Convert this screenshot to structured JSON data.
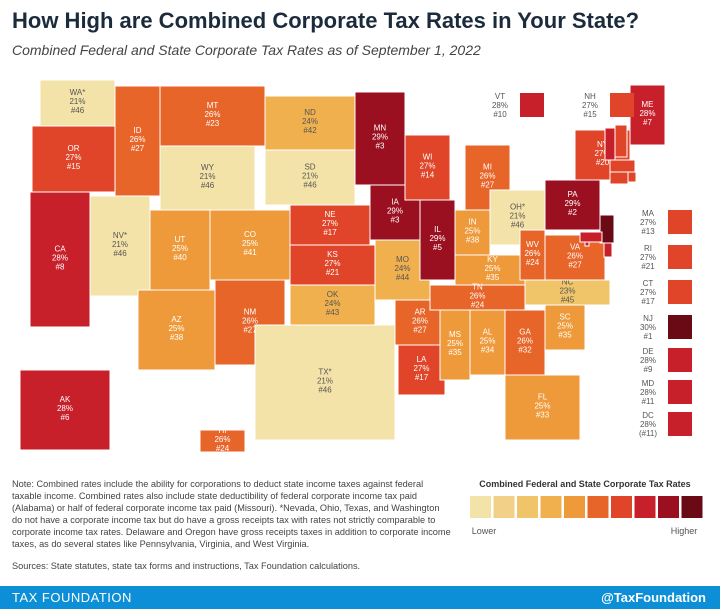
{
  "title": "How High are Combined Corporate Tax Rates in Your State?",
  "subtitle": "Combined Federal and State Corporate Tax Rates as of September 1, 2022",
  "states": [
    {
      "abbr": "WA*",
      "rate": "21%",
      "rank": "#46",
      "color": "#f4e3a8"
    },
    {
      "abbr": "OR",
      "rate": "27%",
      "rank": "#15",
      "color": "#e0452a"
    },
    {
      "abbr": "CA",
      "rate": "28%",
      "rank": "#8",
      "color": "#c8202b"
    },
    {
      "abbr": "ID",
      "rate": "26%",
      "rank": "#27",
      "color": "#e8652a"
    },
    {
      "abbr": "NV*",
      "rate": "21%",
      "rank": "#46",
      "color": "#f4e3a8"
    },
    {
      "abbr": "MT",
      "rate": "26%",
      "rank": "#23",
      "color": "#e8652a"
    },
    {
      "abbr": "WY",
      "rate": "21%",
      "rank": "#46",
      "color": "#f4e3a8"
    },
    {
      "abbr": "UT",
      "rate": "25%",
      "rank": "#40",
      "color": "#ef9a3a"
    },
    {
      "abbr": "AZ",
      "rate": "25%",
      "rank": "#38",
      "color": "#ef9a3a"
    },
    {
      "abbr": "CO",
      "rate": "25%",
      "rank": "#41",
      "color": "#ef9a3a"
    },
    {
      "abbr": "NM",
      "rate": "26%",
      "rank": "#27",
      "color": "#e8652a"
    },
    {
      "abbr": "ND",
      "rate": "24%",
      "rank": "#42",
      "color": "#f0b04e"
    },
    {
      "abbr": "SD",
      "rate": "21%",
      "rank": "#46",
      "color": "#f4e3a8"
    },
    {
      "abbr": "NE",
      "rate": "27%",
      "rank": "#17",
      "color": "#e0452a"
    },
    {
      "abbr": "KS",
      "rate": "27%",
      "rank": "#21",
      "color": "#e0452a"
    },
    {
      "abbr": "OK",
      "rate": "24%",
      "rank": "#43",
      "color": "#f0b04e"
    },
    {
      "abbr": "TX*",
      "rate": "21%",
      "rank": "#46",
      "color": "#f4e3a8"
    },
    {
      "abbr": "MN",
      "rate": "29%",
      "rank": "#3",
      "color": "#9a1020"
    },
    {
      "abbr": "IA",
      "rate": "29%",
      "rank": "#3",
      "color": "#9a1020"
    },
    {
      "abbr": "MO",
      "rate": "24%",
      "rank": "#44",
      "color": "#f0b04e"
    },
    {
      "abbr": "AR",
      "rate": "26%",
      "rank": "#27",
      "color": "#e8652a"
    },
    {
      "abbr": "LA",
      "rate": "27%",
      "rank": "#17",
      "color": "#e0452a"
    },
    {
      "abbr": "WI",
      "rate": "27%",
      "rank": "#14",
      "color": "#e0452a"
    },
    {
      "abbr": "IL",
      "rate": "29%",
      "rank": "#5",
      "color": "#9a1020"
    },
    {
      "abbr": "MI",
      "rate": "26%",
      "rank": "#27",
      "color": "#e8652a"
    },
    {
      "abbr": "IN",
      "rate": "25%",
      "rank": "#38",
      "color": "#ef9a3a"
    },
    {
      "abbr": "OH*",
      "rate": "21%",
      "rank": "#46",
      "color": "#f4e3a8"
    },
    {
      "abbr": "KY",
      "rate": "25%",
      "rank": "#35",
      "color": "#ef9a3a"
    },
    {
      "abbr": "TN",
      "rate": "26%",
      "rank": "#24",
      "color": "#e8652a"
    },
    {
      "abbr": "MS",
      "rate": "25%",
      "rank": "#35",
      "color": "#ef9a3a"
    },
    {
      "abbr": "AL",
      "rate": "25%",
      "rank": "#34",
      "color": "#ef9a3a"
    },
    {
      "abbr": "GA",
      "rate": "26%",
      "rank": "#32",
      "color": "#e8652a"
    },
    {
      "abbr": "FL",
      "rate": "25%",
      "rank": "#33",
      "color": "#ef9a3a"
    },
    {
      "abbr": "SC",
      "rate": "25%",
      "rank": "#35",
      "color": "#ef9a3a"
    },
    {
      "abbr": "NC",
      "rate": "23%",
      "rank": "#45",
      "color": "#f0c468"
    },
    {
      "abbr": "VA",
      "rate": "26%",
      "rank": "#27",
      "color": "#e8652a"
    },
    {
      "abbr": "WV",
      "rate": "26%",
      "rank": "#24",
      "color": "#e8652a"
    },
    {
      "abbr": "PA",
      "rate": "29%",
      "rank": "#2",
      "color": "#9a1020"
    },
    {
      "abbr": "NY",
      "rate": "27%",
      "rank": "#20",
      "color": "#e0452a"
    },
    {
      "abbr": "ME",
      "rate": "28%",
      "rank": "#7",
      "color": "#c8202b"
    },
    {
      "abbr": "VT",
      "rate": "28%",
      "rank": "#10",
      "color": "#c8202b"
    },
    {
      "abbr": "NH",
      "rate": "27%",
      "rank": "#15",
      "color": "#e0452a"
    },
    {
      "abbr": "MA",
      "rate": "27%",
      "rank": "#13",
      "color": "#e0452a"
    },
    {
      "abbr": "RI",
      "rate": "27%",
      "rank": "#21",
      "color": "#e0452a"
    },
    {
      "abbr": "CT",
      "rate": "27%",
      "rank": "#17",
      "color": "#e0452a"
    },
    {
      "abbr": "NJ",
      "rate": "30%",
      "rank": "#1",
      "color": "#6a0a15"
    },
    {
      "abbr": "DE",
      "rate": "28%",
      "rank": "#9",
      "color": "#c8202b"
    },
    {
      "abbr": "MD",
      "rate": "28%",
      "rank": "#11",
      "color": "#c8202b"
    },
    {
      "abbr": "DC",
      "rate": "28%",
      "rank": "(#11)",
      "color": "#c8202b"
    },
    {
      "abbr": "AK",
      "rate": "28%",
      "rank": "#6",
      "color": "#c8202b"
    },
    {
      "abbr": "HI",
      "rate": "26%",
      "rank": "#24",
      "color": "#e8652a"
    }
  ],
  "legend": {
    "title": "Combined Federal and State Corporate Tax Rates",
    "low": "Lower",
    "high": "Higher",
    "colors": [
      "#f4e3a8",
      "#f3d088",
      "#f0c468",
      "#f0b04e",
      "#ef9a3a",
      "#e8652a",
      "#e0452a",
      "#c8202b",
      "#9a1020",
      "#6a0a15"
    ]
  },
  "note": "Note: Combined rates include the ability for corporations to deduct state income taxes against federal taxable income. Combined rates also include state deductibility of federal corporate income tax paid (Alabama) or half of federal corporate income tax paid (Missouri). *Nevada, Ohio, Texas, and Washington do not have a corporate income tax but do have a gross receipts tax with rates not strictly comparable to corporate income tax rates. Delaware and Oregon have gross receipts taxes in addition to corporate income taxes, as do several states like Pennsylvania, Virginia, and West Virginia.",
  "sources": "Sources: State statutes, state tax forms and instructions, Tax Foundation calculations.",
  "footer": {
    "brand": "TAX FOUNDATION",
    "handle": "@TaxFoundation"
  }
}
